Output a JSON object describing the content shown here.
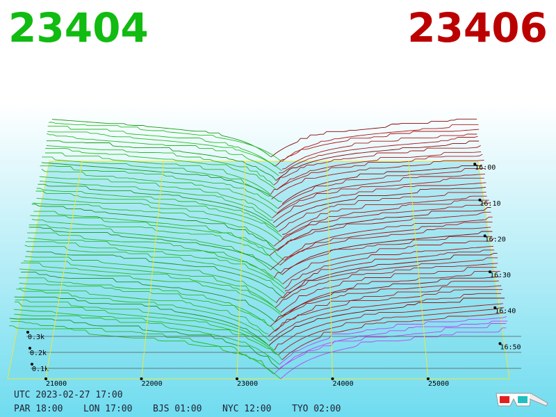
{
  "header": {
    "bid": 23404,
    "ask": 23406
  },
  "price_axis": [
    21000,
    22000,
    23000,
    24000,
    25000
  ],
  "time_axis": [
    "16:00",
    "16:10",
    "16:20",
    "16:30",
    "16:40",
    "16:50"
  ],
  "depth_axis": [
    {
      "value": 300,
      "label": "0.3k"
    },
    {
      "value": 200,
      "label": "0.2k"
    },
    {
      "value": 100,
      "label": "0.1k"
    }
  ],
  "footer": {
    "utc": "UTC 2023-02-27 17:00",
    "clocks": [
      "PAR 18:00",
      "LON 17:00",
      "BJS 01:00",
      "NYC 12:00",
      "TYO 02:00"
    ]
  }
}
